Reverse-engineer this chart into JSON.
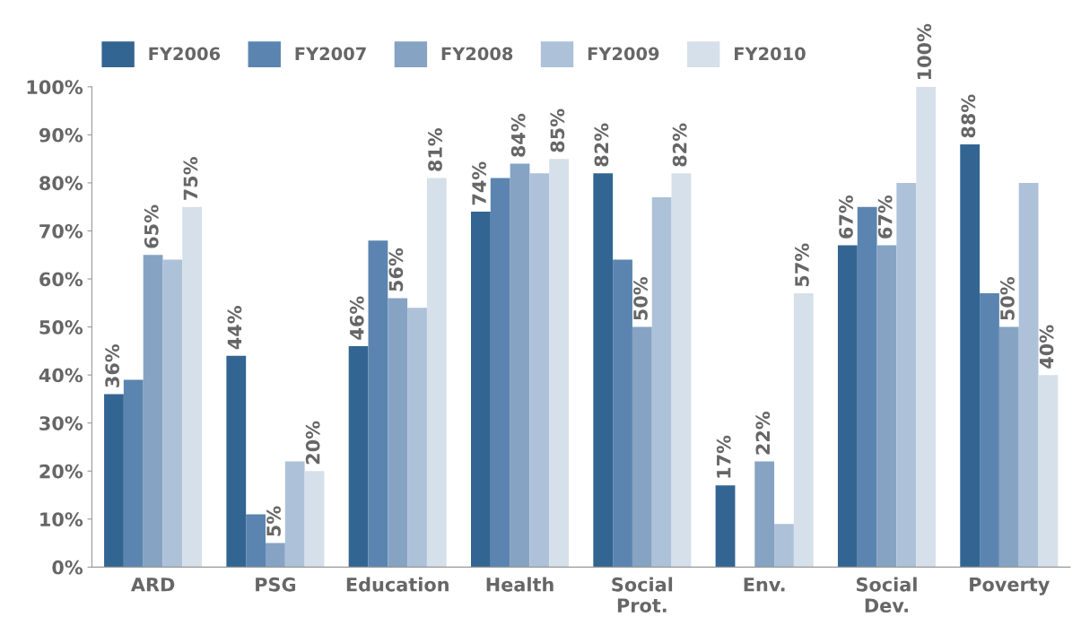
{
  "chart_data": {
    "type": "bar",
    "categories": [
      "ARD",
      "PSG",
      "Education",
      "Health",
      "Social\nProt.",
      "Env.",
      "Social\nDev.",
      "Poverty"
    ],
    "series": [
      {
        "name": "FY2006",
        "color": "#336592",
        "values": [
          36,
          44,
          46,
          74,
          82,
          17,
          67,
          88
        ],
        "value_labels": [
          "36%",
          "44%",
          "46%",
          "74%",
          "82%",
          "17%",
          "67%",
          "88%"
        ]
      },
      {
        "name": "FY2007",
        "color": "#5b85b0",
        "values": [
          39,
          11,
          68,
          81,
          64,
          null,
          75,
          57
        ]
      },
      {
        "name": "FY2008",
        "color": "#86a3c3",
        "values": [
          65,
          5,
          56,
          84,
          50,
          22,
          67,
          50
        ],
        "value_labels": [
          "65%",
          "5%",
          "56%",
          "84%",
          "50%",
          "22%",
          "67%",
          "50%"
        ]
      },
      {
        "name": "FY2009",
        "color": "#adc1d8",
        "values": [
          64,
          22,
          54,
          82,
          77,
          9,
          80,
          80
        ]
      },
      {
        "name": "FY2010",
        "color": "#d6e0ea",
        "values": [
          75,
          20,
          81,
          85,
          82,
          57,
          100,
          40
        ],
        "value_labels": [
          "75%",
          "20%",
          "81%",
          "85%",
          "82%",
          "57%",
          "100%",
          "40%"
        ]
      }
    ],
    "ylim": [
      0,
      100
    ],
    "yticks": [
      {
        "value": 0,
        "label": "0%"
      },
      {
        "value": 10,
        "label": "10%"
      },
      {
        "value": 20,
        "label": "20%"
      },
      {
        "value": 30,
        "label": "30%"
      },
      {
        "value": 40,
        "label": "40%"
      },
      {
        "value": 50,
        "label": "50%"
      },
      {
        "value": 60,
        "label": "60%"
      },
      {
        "value": 70,
        "label": "70%"
      },
      {
        "value": 80,
        "label": "80%"
      },
      {
        "value": 90,
        "label": "90%"
      },
      {
        "value": 100,
        "label": "100%"
      }
    ],
    "grid": false,
    "legend": "top"
  }
}
